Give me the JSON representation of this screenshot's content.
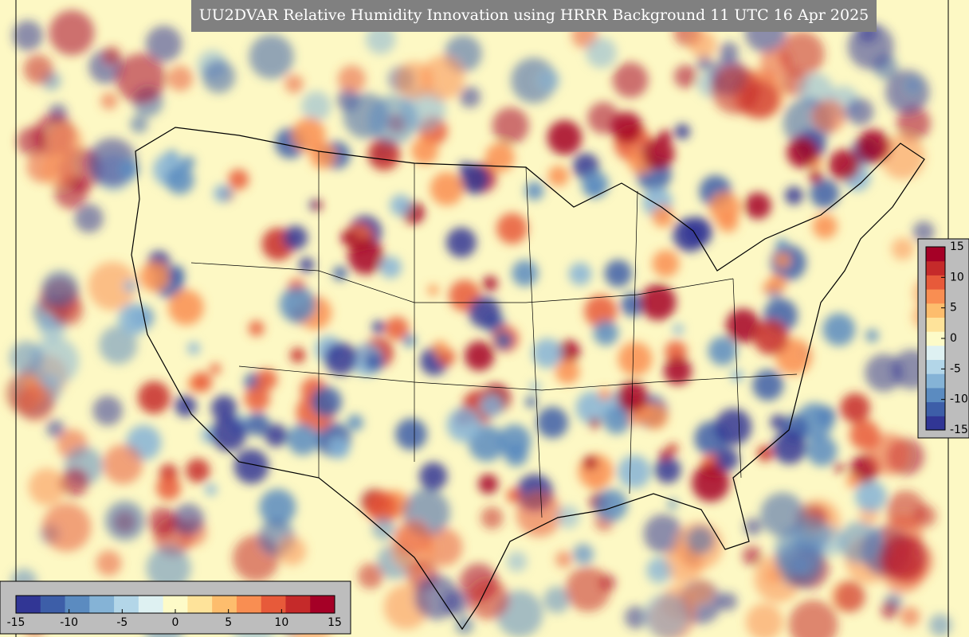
{
  "title": "UU2DVAR Relative Humidity Innovation using HRRR Background 11 UTC 16 Apr 2025",
  "colorbar": {
    "range": [
      -15,
      15
    ],
    "ticks": [
      -15,
      -10,
      -5,
      0,
      5,
      10,
      15
    ],
    "colors": [
      "#313695",
      "#3d5ea8",
      "#5b8bc0",
      "#85b3d6",
      "#b3d6e8",
      "#def1f2",
      "#fdfbc8",
      "#fee39a",
      "#fdbd6d",
      "#f98e52",
      "#e75a3a",
      "#c52a2a",
      "#a50026"
    ]
  }
}
